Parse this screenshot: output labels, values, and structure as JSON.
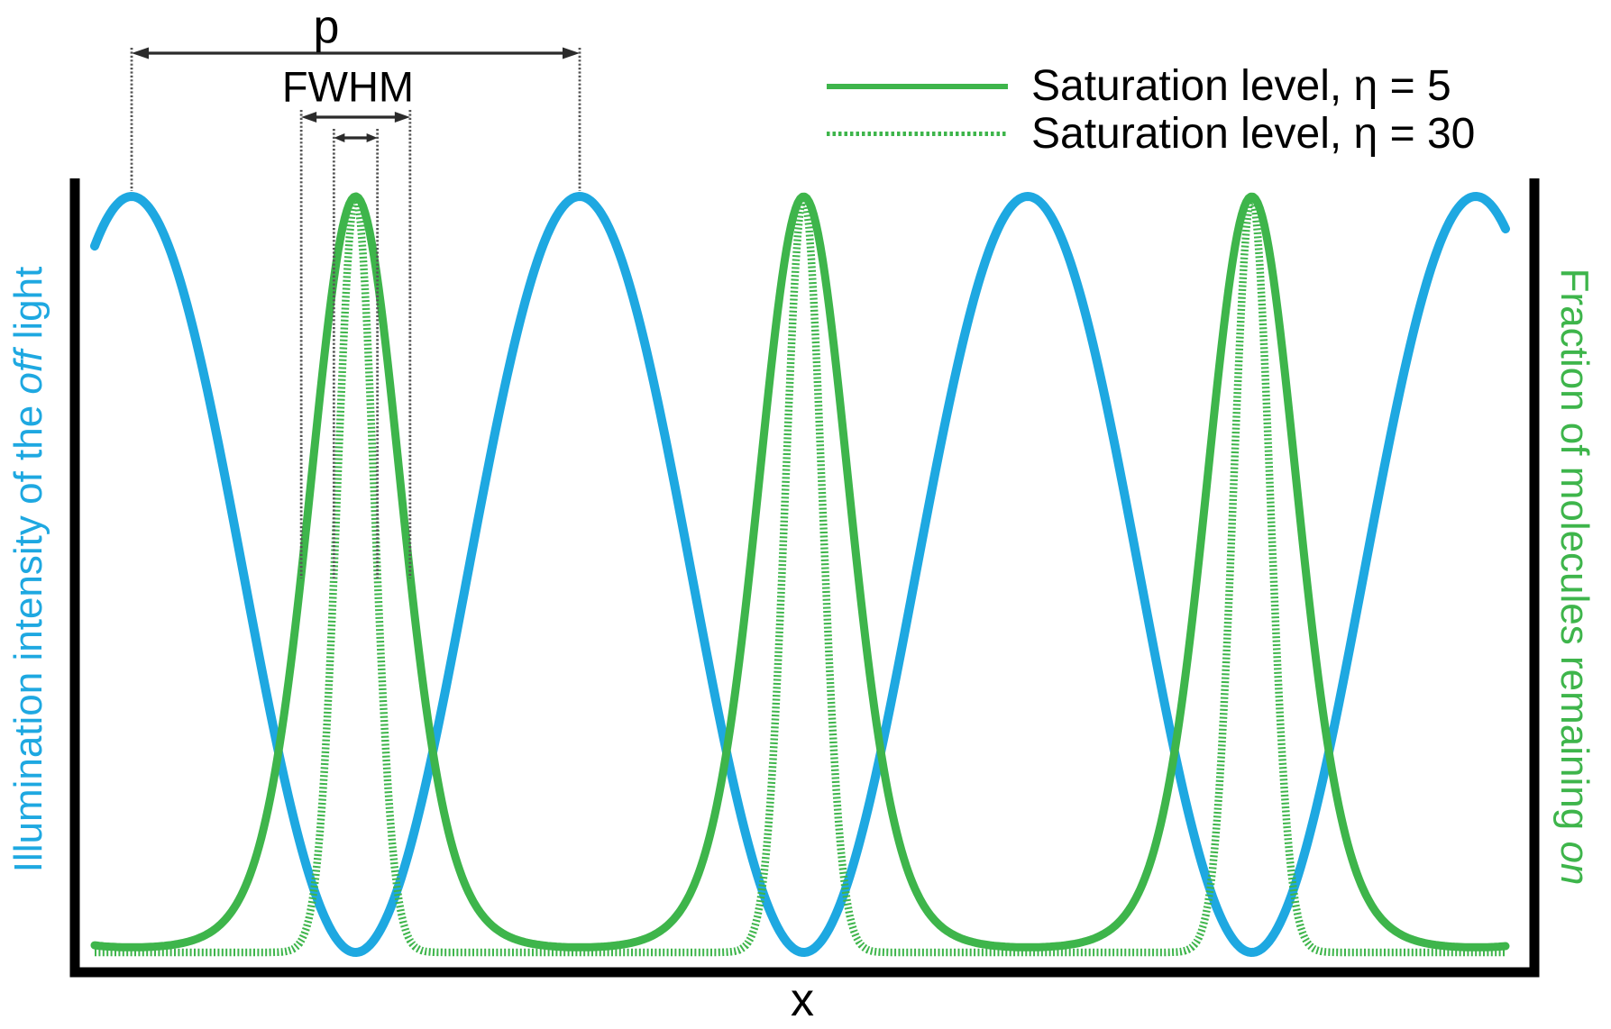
{
  "figure": {
    "x_axis_label": "x",
    "left_axis": {
      "color": "#1EA8E1",
      "label_parts": [
        [
          "Illumination intensity of the ",
          "normal"
        ],
        [
          "off",
          "italic"
        ],
        [
          " light",
          "normal"
        ]
      ]
    },
    "right_axis": {
      "color": "#3EB54B",
      "label_parts": [
        [
          "Fraction of molecules remaining ",
          "normal"
        ],
        [
          "on",
          "italic"
        ]
      ]
    },
    "annotations": {
      "period_label": "p",
      "fwhm_label": "FWHM"
    }
  },
  "legend": {
    "entries": [
      {
        "label": "Saturation level, η = 5",
        "line_style": "solid"
      },
      {
        "label": "Saturation level, η = 30",
        "line_style": "dotted"
      }
    ]
  },
  "chart_data": {
    "type": "line",
    "title": "",
    "xlabel": "x",
    "ylabel_left": "Illumination intensity of the off light",
    "ylabel_right": "Fraction of molecules remaining on",
    "x_axis": {
      "ticks": [],
      "units": "periods p of the illumination pattern",
      "range_in_p": [
        -0.082,
        3.066
      ]
    },
    "y_axis": {
      "ticks": [],
      "range_normalized": [
        0,
        1
      ]
    },
    "grid": false,
    "legend_position": "top-right",
    "series": [
      {
        "name": "Illumination intensity of the off light",
        "axis": "left",
        "color": "#1EA8E1",
        "line_style": "solid",
        "formula": "I(x) = cos²(π·x/p)",
        "peak_positions_in_p": [
          0,
          1,
          2,
          3
        ],
        "minima_positions_in_p": [
          0.5,
          1.5,
          2.5
        ],
        "peak_value": 1,
        "min_value": 0
      },
      {
        "name": "Saturation level, η = 5",
        "axis": "right",
        "color": "#3EB54B",
        "line_style": "solid",
        "eta": 5,
        "formula": "f(x) = exp(−η·I(x))",
        "peak_positions_in_p": [
          0.5,
          1.5,
          2.5
        ],
        "peak_value": 1,
        "fwhm_in_p": 0.243
      },
      {
        "name": "Saturation level, η = 30",
        "axis": "right",
        "color": "#3EB54B",
        "line_style": "dotted",
        "eta": 30,
        "formula": "f(x) = exp(−η·I(x))",
        "peak_positions_in_p": [
          0.5,
          1.5,
          2.5
        ],
        "peak_value": 1,
        "fwhm_in_p": 0.097
      }
    ],
    "annotations": [
      {
        "label": "p",
        "type": "horizontal-dimension",
        "spans_in_p": [
          0,
          1
        ]
      },
      {
        "label": "FWHM",
        "type": "horizontal-dimension",
        "spans_in_p": [
          0.378,
          0.622
        ],
        "refers_to": "Saturation level, η = 5"
      },
      {
        "label": "",
        "type": "horizontal-dimension",
        "spans_in_p": [
          0.451,
          0.549
        ],
        "refers_to": "Saturation level, η = 30"
      }
    ]
  }
}
